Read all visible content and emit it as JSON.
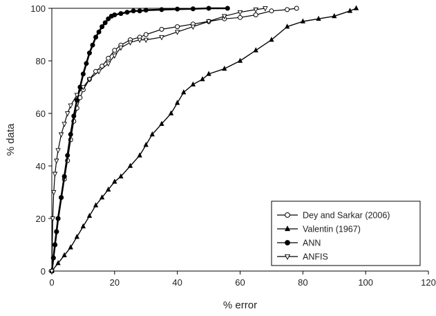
{
  "chart_data": {
    "type": "line",
    "title": "",
    "xlabel": "% error",
    "ylabel": "% data",
    "xlim": [
      0,
      120
    ],
    "ylim": [
      0,
      100
    ],
    "xticks": [
      "0",
      "20",
      "40",
      "60",
      "80",
      "100",
      "120"
    ],
    "yticks": [
      "0",
      "20",
      "40",
      "60",
      "80",
      "100"
    ],
    "grid": false,
    "legend_position": "bottom-right",
    "series": [
      {
        "name": "Dey and Sarkar (2006)",
        "marker": "open-circle",
        "x": [
          0,
          0.5,
          1,
          1.5,
          2,
          3,
          4,
          5,
          6,
          7,
          8,
          9,
          10,
          12,
          14,
          16,
          18,
          20,
          22,
          25,
          28,
          30,
          35,
          40,
          45,
          50,
          55,
          60,
          65,
          70,
          75,
          78
        ],
        "y": [
          0,
          5,
          10,
          15,
          20,
          28,
          35,
          42,
          50,
          57,
          62,
          66,
          69,
          73,
          76,
          78,
          81,
          84,
          86,
          88,
          89,
          90,
          92,
          93,
          94,
          95,
          96,
          96.5,
          97.5,
          99,
          99.5,
          100
        ]
      },
      {
        "name": "Valentin (1967)",
        "marker": "filled-triangle",
        "x": [
          0,
          2,
          4,
          6,
          8,
          10,
          12,
          14,
          16,
          18,
          20,
          22,
          25,
          28,
          30,
          32,
          35,
          38,
          40,
          42,
          45,
          48,
          50,
          55,
          60,
          65,
          70,
          75,
          80,
          85,
          90,
          95,
          97
        ],
        "y": [
          0,
          3,
          6,
          9,
          13,
          17,
          21,
          25,
          28,
          31,
          34,
          36,
          40,
          44,
          48,
          52,
          56,
          60,
          64,
          68,
          71,
          73,
          75,
          77,
          80,
          84,
          88,
          93,
          95,
          96,
          97,
          99,
          100
        ]
      },
      {
        "name": "ANN",
        "marker": "filled-circle",
        "x": [
          0,
          0.5,
          1,
          1.5,
          2,
          3,
          4,
          5,
          6,
          7,
          8,
          9,
          10,
          11,
          12,
          13,
          14,
          15,
          16,
          17,
          18,
          19,
          20,
          22,
          24,
          26,
          28,
          30,
          35,
          40,
          45,
          50,
          56
        ],
        "y": [
          0,
          5,
          10,
          15,
          20,
          28,
          36,
          44,
          52,
          59,
          65,
          70,
          75,
          79,
          83,
          86,
          89,
          91,
          93,
          94.5,
          96,
          97,
          97.5,
          98,
          98.5,
          99,
          99,
          99.3,
          99.5,
          99.7,
          99.8,
          100,
          100
        ]
      },
      {
        "name": "ANFIS",
        "marker": "open-triangle-down",
        "x": [
          0,
          0.3,
          0.6,
          1,
          1.5,
          2,
          3,
          4,
          5,
          6,
          8,
          10,
          12,
          15,
          18,
          20,
          22,
          25,
          28,
          30,
          35,
          40,
          45,
          50,
          55,
          60,
          65,
          68
        ],
        "y": [
          0,
          20,
          30,
          37,
          42,
          46,
          52,
          56,
          60,
          63,
          67,
          70,
          73,
          76,
          79,
          82,
          85,
          87,
          88,
          88,
          89,
          91,
          93,
          95,
          97,
          98.5,
          99.5,
          100
        ]
      }
    ]
  }
}
